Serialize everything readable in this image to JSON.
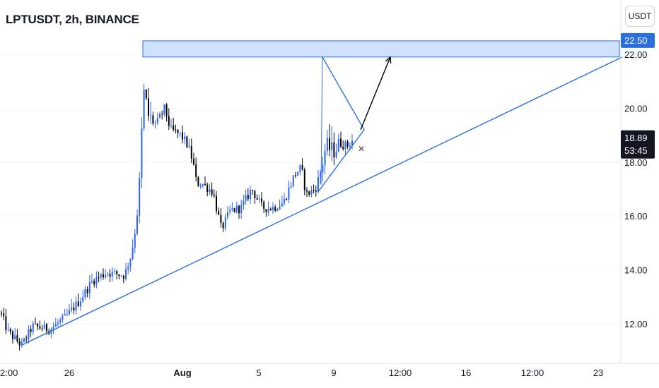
{
  "header": {
    "title": "LPTUSDT, 2h, BINANCE",
    "currency": "USDT"
  },
  "price_axis": {
    "badges": {
      "zone_top": "22.50",
      "last_price": "18.89",
      "countdown": "53:45"
    }
  },
  "colors": {
    "bull": "#2962ff",
    "bear": "#000000",
    "annotation": "#2a6fdb",
    "zone_fill": "#cfe0fb",
    "arrow": "#000000",
    "marker": "#6d5f5a",
    "price_badge": "#131722"
  },
  "chart_data": {
    "type": "candlestick",
    "title": "LPTUSDT, 2h, BINANCE",
    "xlabel": "",
    "ylabel": "",
    "ylim": [
      10.8,
      23.0
    ],
    "yticks": [
      12.0,
      14.0,
      16.0,
      18.0,
      20.0,
      22.0
    ],
    "ytick_labels": [
      "12.00",
      "14.00",
      "16.00",
      "18.00",
      "20.00",
      "22.00"
    ],
    "xtick_labels": [
      "2:00",
      "26",
      "Aug",
      "5",
      "9",
      "12:00",
      "16",
      "12:00",
      "23"
    ],
    "last_price": 18.89,
    "price_path": [
      [
        0,
        12.4
      ],
      [
        10,
        11.7
      ],
      [
        30,
        11.2
      ],
      [
        45,
        11.9
      ],
      [
        70,
        11.8
      ],
      [
        90,
        12.2
      ],
      [
        110,
        12.8
      ],
      [
        130,
        13.6
      ],
      [
        150,
        13.9
      ],
      [
        175,
        13.8
      ],
      [
        185,
        14.6
      ],
      [
        192,
        15.8
      ],
      [
        196,
        17.0
      ],
      [
        202,
        20.6
      ],
      [
        210,
        19.6
      ],
      [
        220,
        19.4
      ],
      [
        232,
        20.0
      ],
      [
        240,
        19.2
      ],
      [
        255,
        19.0
      ],
      [
        265,
        18.6
      ],
      [
        272,
        18.0
      ],
      [
        277,
        17.2
      ],
      [
        285,
        17.2
      ],
      [
        300,
        16.9
      ],
      [
        312,
        15.5
      ],
      [
        325,
        16.2
      ],
      [
        340,
        16.3
      ],
      [
        355,
        17.0
      ],
      [
        370,
        16.3
      ],
      [
        385,
        16.3
      ],
      [
        400,
        16.5
      ],
      [
        415,
        17.5
      ],
      [
        425,
        17.8
      ],
      [
        432,
        16.8
      ],
      [
        445,
        17.0
      ],
      [
        452,
        17.6
      ],
      [
        460,
        18.6
      ],
      [
        470,
        18.4
      ],
      [
        480,
        18.7
      ],
      [
        490,
        18.6
      ],
      [
        500,
        18.9
      ]
    ],
    "annotations": {
      "resistance_zone": [
        21.9,
        22.5
      ],
      "ascending_trendline": [
        [
          30,
          11.2
        ],
        [
          880,
          21.9
        ]
      ],
      "triangle": {
        "apex_top": [
          456,
          21.9
        ],
        "apex_bottom": [
          450,
          16.9
        ],
        "tip": [
          515,
          19.2
        ]
      },
      "projection_arrow": {
        "from": [
          510,
          19.2
        ],
        "to": [
          552,
          21.9
        ]
      },
      "marker_x": [
        511,
        18.5
      ]
    }
  }
}
